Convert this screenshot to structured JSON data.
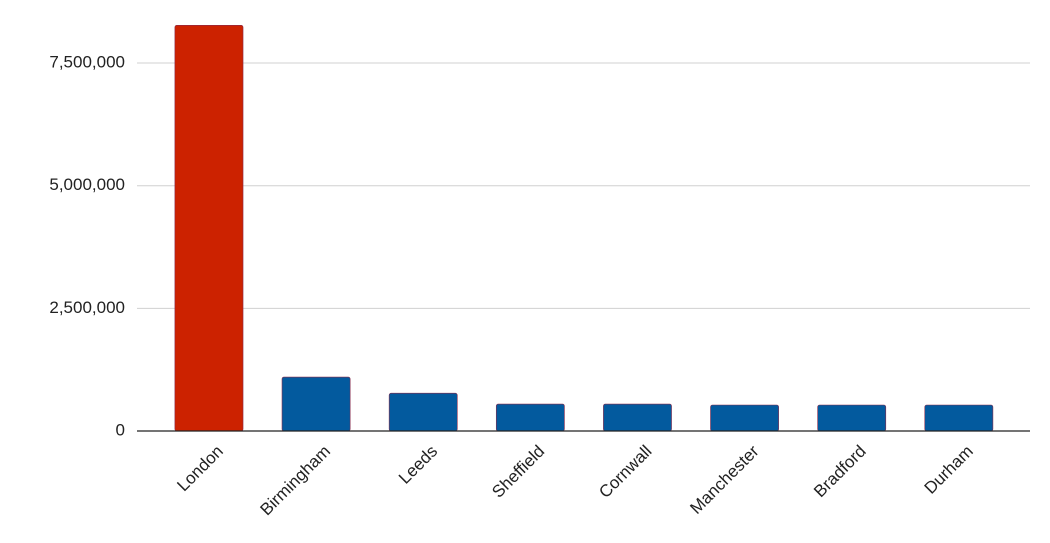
{
  "chart_data": {
    "type": "bar",
    "categories": [
      "London",
      "Birmingham",
      "Leeds",
      "Sheffield",
      "Cornwall",
      "Manchester",
      "Bradford",
      "Durham"
    ],
    "values": [
      8270000,
      1100000,
      770000,
      550000,
      550000,
      530000,
      530000,
      530000
    ],
    "colors": [
      "#cc2200",
      "#035a9e",
      "#035a9e",
      "#035a9e",
      "#035a9e",
      "#035a9e",
      "#035a9e",
      "#035a9e"
    ],
    "ylim": [
      0,
      8500000
    ],
    "yticks": [
      0,
      {
        "value": 2500000,
        "label": "2,500,000"
      },
      {
        "value": 5000000,
        "label": "5,000,000"
      },
      {
        "value": 7500000,
        "label": "7,500,000"
      }
    ],
    "grid": true
  }
}
